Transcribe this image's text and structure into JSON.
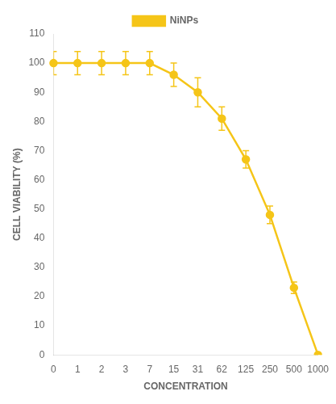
{
  "chart_data": {
    "type": "line",
    "categories": [
      "0",
      "1",
      "2",
      "3",
      "7",
      "15",
      "31",
      "62",
      "125",
      "250",
      "500",
      "1000"
    ],
    "series": [
      {
        "name": "NiNPs",
        "color": "#F5C518",
        "marker": "circle",
        "values": [
          100,
          100,
          100,
          100,
          100,
          96,
          90,
          81,
          67,
          48,
          23,
          0
        ],
        "errors": [
          4,
          4,
          4,
          4,
          4,
          4,
          5,
          4,
          3,
          3,
          2,
          0
        ]
      }
    ],
    "xlabel": "CONCENTRATION",
    "ylabel": "CELL VIABILITY (%)",
    "ylim": [
      0,
      110
    ],
    "yticks": [
      0,
      10,
      20,
      30,
      40,
      50,
      60,
      70,
      80,
      90,
      100,
      110
    ],
    "grid": false,
    "legend": "top"
  }
}
